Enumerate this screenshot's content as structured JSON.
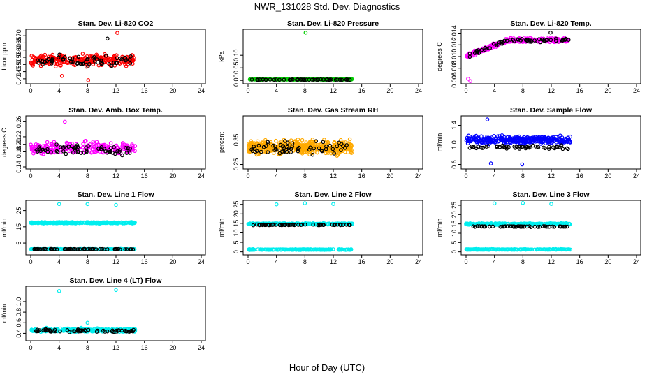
{
  "figure": {
    "title": "NWR_131028  Std. Dev. Diagnostics",
    "xlabel": "Hour of Day (UTC)"
  },
  "chart_data": [
    {
      "type": "scatter",
      "title": "Stan. Dev. Li-820 CO2",
      "ylabel": "Licor ppm",
      "xlim": [
        0,
        24
      ],
      "xticks": [
        "0",
        "4",
        "8",
        "12",
        "16",
        "20",
        "24"
      ],
      "ylim": [
        0.38,
        0.73
      ],
      "yticks": [
        {
          "v": 0.4,
          "label": "0.40"
        },
        {
          "v": 0.45,
          "label": "0.45"
        },
        {
          "v": 0.5,
          "label": "0.50"
        },
        {
          "v": 0.55,
          "label": "0.55"
        },
        {
          "v": 0.6,
          "label": "0.60"
        },
        {
          "v": 0.65,
          "label": "0.65"
        },
        {
          "v": 0.7,
          "label": "0.70"
        }
      ],
      "series": [
        {
          "name": "red",
          "color": "#ff0000",
          "x_range": [
            0,
            14.7
          ],
          "y_center": 0.53,
          "y_spread": 0.055,
          "n": 260
        },
        {
          "name": "black",
          "color": "#000000",
          "x_range": [
            0.5,
            14.5
          ],
          "y_center": 0.53,
          "y_spread": 0.05,
          "n": 60
        }
      ],
      "outliers": [
        {
          "x": 12.2,
          "y": 0.72,
          "color": "#ff0000"
        },
        {
          "x": 8.1,
          "y": 0.39,
          "color": "#ff0000"
        },
        {
          "x": 10.8,
          "y": 0.68,
          "color": "#000000"
        },
        {
          "x": 4.4,
          "y": 0.42,
          "color": "#ff0000"
        }
      ]
    },
    {
      "type": "scatter",
      "title": "Stan. Dev. Li-820 Pressure",
      "ylabel": "kPa",
      "xlim": [
        0,
        24
      ],
      "xticks": [
        "0",
        "4",
        "8",
        "12",
        "16",
        "20",
        "24"
      ],
      "ylim": [
        -0.005,
        0.195
      ],
      "yticks": [
        {
          "v": 0.0,
          "label": "0.00"
        },
        {
          "v": 0.05,
          "label": "0.05"
        },
        {
          "v": 0.1,
          "label": "0.10"
        }
      ],
      "series": [
        {
          "name": "green",
          "color": "#00cc00",
          "x_range": [
            0,
            14.7
          ],
          "y_center": 0.004,
          "y_spread": 0.002,
          "n": 200
        },
        {
          "name": "black",
          "color": "#000000",
          "x_range": [
            0.5,
            14.5
          ],
          "y_center": 0.003,
          "y_spread": 0.0015,
          "n": 50
        }
      ],
      "outliers": [
        {
          "x": 8.1,
          "y": 0.19,
          "color": "#00cc00"
        }
      ]
    },
    {
      "type": "scatter",
      "title": "Stan. Dev. Li-820 Temp.",
      "ylabel": "degrees C",
      "xlim": [
        0,
        24
      ],
      "xticks": [
        "0",
        "4",
        "8",
        "12",
        "16",
        "20",
        "24"
      ],
      "ylim": [
        0.0057,
        0.0143
      ],
      "yticks": [
        {
          "v": 0.006,
          "label": "0.006"
        },
        {
          "v": 0.008,
          "label": "0.008"
        },
        {
          "v": 0.01,
          "label": "0.010"
        },
        {
          "v": 0.012,
          "label": "0.012"
        },
        {
          "v": 0.014,
          "label": "0.014"
        }
      ],
      "series": [
        {
          "name": "magenta",
          "color": "#ff00ff",
          "x_range": [
            0,
            14.7
          ],
          "y_center": 0.0128,
          "y_spread": 0.0006,
          "n": 240,
          "trend": "rising"
        },
        {
          "name": "black",
          "color": "#000000",
          "x_range": [
            0.5,
            14.5
          ],
          "y_center": 0.0128,
          "y_spread": 0.0005,
          "n": 60,
          "trend": "rising"
        }
      ],
      "outliers": [
        {
          "x": 0.3,
          "y": 0.0062,
          "color": "#ff00ff"
        },
        {
          "x": 0.6,
          "y": 0.0058,
          "color": "#ff00ff"
        },
        {
          "x": 11.9,
          "y": 0.0141,
          "color": "#000000"
        }
      ]
    },
    {
      "type": "scatter",
      "title": "Stan. Dev. Amb. Box Temp.",
      "ylabel": "degrees C",
      "xlim": [
        0,
        24
      ],
      "xticks": [
        "0",
        "4",
        "8",
        "12",
        "16",
        "20",
        "24"
      ],
      "ylim": [
        0.14,
        0.27
      ],
      "yticks": [
        {
          "v": 0.14,
          "label": "0.14"
        },
        {
          "v": 0.18,
          "label": "0.18"
        },
        {
          "v": 0.2,
          "label": "0.20"
        },
        {
          "v": 0.22,
          "label": "0.22"
        },
        {
          "v": 0.26,
          "label": "0.26"
        }
      ],
      "series": [
        {
          "name": "magenta",
          "color": "#ff00ff",
          "x_range": [
            0,
            14.7
          ],
          "y_center": 0.19,
          "y_spread": 0.022,
          "n": 240
        },
        {
          "name": "black",
          "color": "#000000",
          "x_range": [
            0.5,
            14.5
          ],
          "y_center": 0.185,
          "y_spread": 0.02,
          "n": 60
        }
      ],
      "outliers": [
        {
          "x": 4.8,
          "y": 0.26,
          "color": "#ff00ff"
        }
      ]
    },
    {
      "type": "scatter",
      "title": "Stan. Dev. Gas Stream RH",
      "ylabel": "percent",
      "xlim": [
        0,
        24
      ],
      "xticks": [
        "0",
        "4",
        "8",
        "12",
        "16",
        "20",
        "24"
      ],
      "ylim": [
        0.24,
        0.44
      ],
      "yticks": [
        {
          "v": 0.25,
          "label": "0.25"
        },
        {
          "v": 0.35,
          "label": "0.35"
        }
      ],
      "series": [
        {
          "name": "orange",
          "color": "#ffaa00",
          "x_range": [
            0,
            14.7
          ],
          "y_center": 0.32,
          "y_spread": 0.04,
          "n": 450
        },
        {
          "name": "black",
          "color": "#000000",
          "x_range": [
            0.5,
            14.5
          ],
          "y_center": 0.32,
          "y_spread": 0.035,
          "n": 60
        }
      ],
      "outliers": []
    },
    {
      "type": "scatter",
      "title": "Stan. Dev. Sample Flow",
      "ylabel": "ml/min",
      "xlim": [
        0,
        24
      ],
      "xticks": [
        "0",
        "4",
        "8",
        "12",
        "16",
        "20",
        "24"
      ],
      "ylim": [
        0.55,
        1.55
      ],
      "yticks": [
        {
          "v": 0.6,
          "label": "0.6"
        },
        {
          "v": 1.0,
          "label": "1.0"
        },
        {
          "v": 1.4,
          "label": "1.4"
        }
      ],
      "series": [
        {
          "name": "blue",
          "color": "#0000ff",
          "x_range": [
            0,
            14.7
          ],
          "y_center": 1.1,
          "y_spread": 0.11,
          "n": 320
        },
        {
          "name": "black",
          "color": "#000000",
          "x_range": [
            0.5,
            14.5
          ],
          "y_center": 0.95,
          "y_spread": 0.07,
          "n": 55
        }
      ],
      "outliers": [
        {
          "x": 3.0,
          "y": 1.52,
          "color": "#0000ff"
        },
        {
          "x": 3.5,
          "y": 0.62,
          "color": "#0000ff"
        },
        {
          "x": 7.9,
          "y": 0.6,
          "color": "#0000ff"
        }
      ]
    },
    {
      "type": "scatter",
      "title": "Stan. Dev. Line 1 Flow",
      "ylabel": "ml/min",
      "xlim": [
        0,
        24
      ],
      "xticks": [
        "0",
        "4",
        "8",
        "12",
        "16",
        "20",
        "24"
      ],
      "ylim": [
        -1,
        30
      ],
      "yticks": [
        {
          "v": 5,
          "label": "5"
        },
        {
          "v": 15,
          "label": "15"
        },
        {
          "v": 25,
          "label": "25"
        }
      ],
      "series": [
        {
          "name": "cyan-high",
          "color": "#00eeee",
          "x_range": [
            0,
            14.7
          ],
          "y_center": 17.5,
          "y_spread": 0.6,
          "n": 280
        },
        {
          "name": "cyan-low",
          "color": "#00eeee",
          "x_range": [
            0,
            14.7
          ],
          "y_center": 1.2,
          "y_spread": 0.25,
          "n": 200
        },
        {
          "name": "black",
          "color": "#000000",
          "x_range": [
            0.5,
            14.5
          ],
          "y_center": 1.2,
          "y_spread": 0.2,
          "n": 60
        }
      ],
      "outliers": [
        {
          "x": 4.0,
          "y": 29,
          "color": "#00eeee"
        },
        {
          "x": 8.0,
          "y": 29,
          "color": "#00eeee"
        },
        {
          "x": 12.0,
          "y": 28.5,
          "color": "#00eeee"
        }
      ]
    },
    {
      "type": "scatter",
      "title": "Stan. Dev. Line 2 Flow",
      "ylabel": "ml/min",
      "xlim": [
        0,
        24
      ],
      "xticks": [
        "0",
        "4",
        "8",
        "12",
        "16",
        "20",
        "24"
      ],
      "ylim": [
        -0.5,
        26
      ],
      "yticks": [
        {
          "v": 0,
          "label": "0"
        },
        {
          "v": 5,
          "label": "5"
        },
        {
          "v": 10,
          "label": "10"
        },
        {
          "v": 15,
          "label": "15"
        },
        {
          "v": 20,
          "label": "20"
        },
        {
          "v": 25,
          "label": "25"
        }
      ],
      "series": [
        {
          "name": "cyan-high",
          "color": "#00eeee",
          "x_range": [
            0,
            14.7
          ],
          "y_center": 14.7,
          "y_spread": 0.5,
          "n": 280
        },
        {
          "name": "cyan-low",
          "color": "#00eeee",
          "x_range": [
            0,
            14.7
          ],
          "y_center": 1.2,
          "y_spread": 0.25,
          "n": 200
        },
        {
          "name": "black",
          "color": "#000000",
          "x_range": [
            0.5,
            14.5
          ],
          "y_center": 14.2,
          "y_spread": 0.35,
          "n": 60
        }
      ],
      "outliers": [
        {
          "x": 4.0,
          "y": 25,
          "color": "#00eeee"
        },
        {
          "x": 8.0,
          "y": 25.6,
          "color": "#00eeee"
        },
        {
          "x": 12.0,
          "y": 25.2,
          "color": "#00eeee"
        }
      ]
    },
    {
      "type": "scatter",
      "title": "Stan. Dev. Line 3 Flow",
      "ylabel": "ml/min",
      "xlim": [
        0,
        24
      ],
      "xticks": [
        "0",
        "4",
        "8",
        "12",
        "16",
        "20",
        "24"
      ],
      "ylim": [
        -0.5,
        26.5
      ],
      "yticks": [
        {
          "v": 0,
          "label": "0"
        },
        {
          "v": 5,
          "label": "5"
        },
        {
          "v": 10,
          "label": "10"
        },
        {
          "v": 15,
          "label": "15"
        },
        {
          "v": 20,
          "label": "20"
        },
        {
          "v": 25,
          "label": "25"
        }
      ],
      "series": [
        {
          "name": "cyan-high",
          "color": "#00eeee",
          "x_range": [
            0,
            14.7
          ],
          "y_center": 14.9,
          "y_spread": 0.6,
          "n": 280
        },
        {
          "name": "cyan-low",
          "color": "#00eeee",
          "x_range": [
            0,
            14.7
          ],
          "y_center": 1.3,
          "y_spread": 0.25,
          "n": 200
        },
        {
          "name": "black",
          "color": "#000000",
          "x_range": [
            0.5,
            14.5
          ],
          "y_center": 13.6,
          "y_spread": 0.35,
          "n": 60
        }
      ],
      "outliers": [
        {
          "x": 4.0,
          "y": 26,
          "color": "#00eeee"
        },
        {
          "x": 8.0,
          "y": 26.2,
          "color": "#00eeee"
        },
        {
          "x": 12.0,
          "y": 25.7,
          "color": "#00eeee"
        }
      ]
    },
    {
      "type": "scatter",
      "title": "Stan. Dev. Line 4 (LT) Flow",
      "ylabel": "ml/min",
      "xlim": [
        0,
        24
      ],
      "xticks": [
        "0",
        "4",
        "8",
        "12",
        "16",
        "20",
        "24"
      ],
      "ylim": [
        0.3,
        1.25
      ],
      "yticks": [
        {
          "v": 0.4,
          "label": "0.4"
        },
        {
          "v": 0.6,
          "label": "0.6"
        },
        {
          "v": 0.8,
          "label": "0.8"
        },
        {
          "v": 1.0,
          "label": "1.0"
        }
      ],
      "series": [
        {
          "name": "cyan",
          "color": "#00eeee",
          "x_range": [
            0,
            14.7
          ],
          "y_center": 0.46,
          "y_spread": 0.045,
          "n": 300
        },
        {
          "name": "black",
          "color": "#000000",
          "x_range": [
            0.5,
            14.5
          ],
          "y_center": 0.45,
          "y_spread": 0.045,
          "n": 60
        }
      ],
      "outliers": [
        {
          "x": 4.0,
          "y": 1.2,
          "color": "#00eeee"
        },
        {
          "x": 12.0,
          "y": 1.22,
          "color": "#00eeee"
        },
        {
          "x": 8.0,
          "y": 0.6,
          "color": "#00eeee"
        }
      ]
    }
  ]
}
